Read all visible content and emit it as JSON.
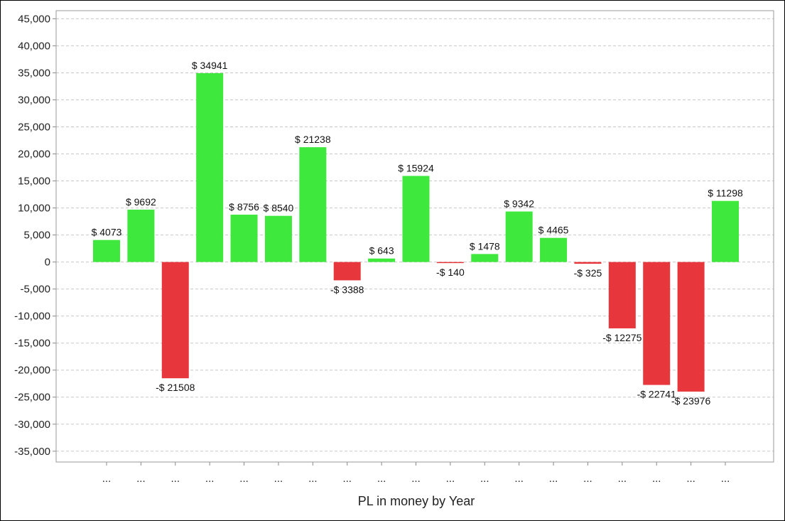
{
  "chart_data": {
    "type": "bar",
    "title": "",
    "xlabel": "PL in money by Year",
    "ylabel": "",
    "ylim": [
      -37000,
      46500
    ],
    "yticks": [
      45000,
      40000,
      35000,
      30000,
      25000,
      20000,
      15000,
      10000,
      5000,
      0,
      -5000,
      -10000,
      -15000,
      -20000,
      -25000,
      -30000,
      -35000
    ],
    "ytick_labels": [
      "45,000",
      "40,000",
      "35,000",
      "30,000",
      "25,000",
      "20,000",
      "15,000",
      "10,000",
      "5,000",
      "0",
      "-5,000",
      "-10,000",
      "-15,000",
      "-20,000",
      "-25,000",
      "-30,000",
      "-35,000"
    ],
    "categories": [
      "...",
      "...",
      "...",
      "...",
      "...",
      "...",
      "...",
      "...",
      "...",
      "...",
      "...",
      "...",
      "...",
      "...",
      "...",
      "...",
      "...",
      "...",
      "..."
    ],
    "values": [
      4073,
      9692,
      -21508,
      34941,
      8756,
      8540,
      21238,
      -3388,
      643,
      15924,
      -140,
      1478,
      9342,
      4465,
      -325,
      -12275,
      -22741,
      -23976,
      11298
    ],
    "value_labels": [
      "$ 4073",
      "$ 9692",
      "-$ 21508",
      "$ 34941",
      "$ 8756",
      "$ 8540",
      "$ 21238",
      "-$ 3388",
      "$ 643",
      "$ 15924",
      "-$ 140",
      "$ 1478",
      "$ 9342",
      "$ 4465",
      "-$ 325",
      "-$ 12275",
      "-$ 22741",
      "-$ 23976",
      "$ 11298"
    ],
    "grid": true,
    "legend": "none",
    "colors": {
      "positive": "#3ee83c",
      "negative": "#e8373c",
      "grid": "#c8c8c8",
      "axis": "#888888"
    }
  }
}
